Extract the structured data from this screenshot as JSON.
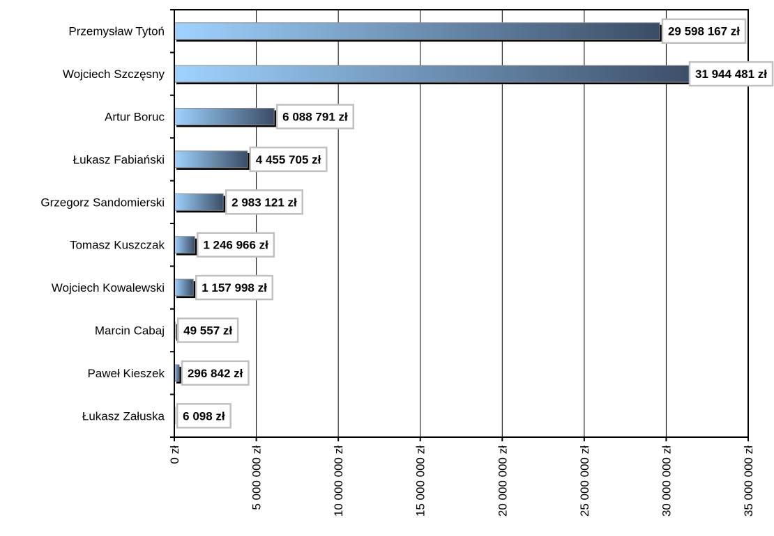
{
  "chart_data": {
    "type": "bar",
    "orientation": "horizontal",
    "title": "",
    "xlabel": "",
    "ylabel": "",
    "categories": [
      "Przemysław Tytoń",
      "Wojciech Szczęsny",
      "Artur Boruc",
      "Łukasz Fabiański",
      "Grzegorz Sandomierski",
      "Tomasz Kuszczak",
      "Wojciech Kowalewski",
      "Marcin Cabaj",
      "Paweł Kieszek",
      "Łukasz Załuska"
    ],
    "values": [
      29598167,
      31944481,
      6088791,
      4455705,
      2983121,
      1246966,
      1157998,
      49557,
      296842,
      6098
    ],
    "data_labels": [
      "29 598 167 zł",
      "31 944 481 zł",
      "6 088 791 zł",
      "4 455 705 zł",
      "2 983 121 zł",
      "1 246 966 zł",
      "1 157 998 zł",
      "49 557 zł",
      "296 842 zł",
      "6 098 zł"
    ],
    "xlim": [
      0,
      35000000
    ],
    "x_ticks": [
      0,
      5000000,
      10000000,
      15000000,
      20000000,
      25000000,
      30000000,
      35000000
    ],
    "x_tick_labels": [
      "0 zł",
      "5 000 000 zł",
      "10 000 000 zł",
      "15 000 000 zł",
      "20 000 000 zł",
      "25 000 000 zł",
      "30 000 000 zł",
      "35 000 000 zł"
    ],
    "grid": "vertical",
    "legend": "none",
    "colors": {
      "bar_light": "#9fd3ff",
      "bar_dark": "#3a4d66",
      "grid": "#000000",
      "label_border": "#c0c0c0"
    }
  }
}
